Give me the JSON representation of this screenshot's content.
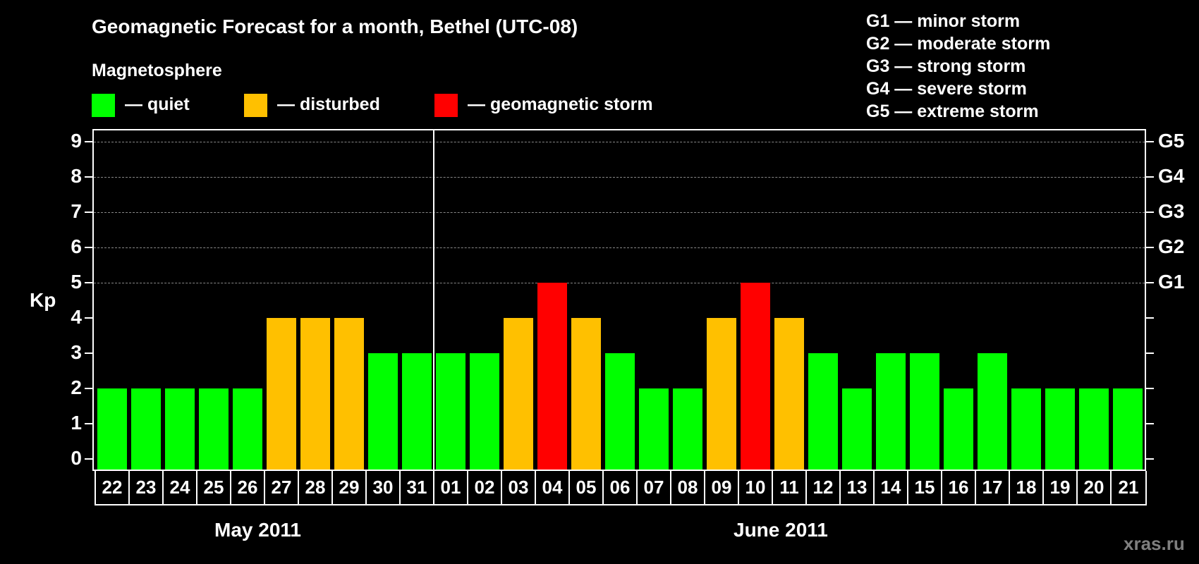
{
  "title": "Geomagnetic Forecast for a month, Bethel (UTC-08)",
  "subtitle": "Magnetosphere",
  "legend": [
    {
      "label": "— quiet",
      "color": "#00ff00"
    },
    {
      "label": "— disturbed",
      "color": "#ffc000"
    },
    {
      "label": "— geomagnetic storm",
      "color": "#ff0000"
    }
  ],
  "g_scale": [
    "G1 — minor storm",
    "G2 — moderate storm",
    "G3 — strong storm",
    "G4 — severe storm",
    "G5 — extreme storm"
  ],
  "watermark": "xras.ru",
  "chart_data": {
    "type": "bar",
    "title": "Geomagnetic Forecast for a month, Bethel (UTC-08)",
    "xlabel": "",
    "ylabel": "Kp",
    "ylim": [
      0,
      9
    ],
    "yticks": [
      "0",
      "1",
      "2",
      "3",
      "4",
      "5",
      "6",
      "7",
      "8",
      "9"
    ],
    "right_axis_labels": {
      "5": "G1",
      "6": "G2",
      "7": "G3",
      "8": "G4",
      "9": "G5"
    },
    "grid": "dashed horizontal at Kp 5-9",
    "months": [
      {
        "label": "May 2011",
        "days": [
          "22",
          "23",
          "24",
          "25",
          "26",
          "27",
          "28",
          "29",
          "30",
          "31"
        ]
      },
      {
        "label": "June 2011",
        "days": [
          "01",
          "02",
          "03",
          "04",
          "05",
          "06",
          "07",
          "08",
          "09",
          "10",
          "11",
          "12",
          "13",
          "14",
          "15",
          "16",
          "17",
          "18",
          "19",
          "20",
          "21"
        ]
      }
    ],
    "categories": [
      "22",
      "23",
      "24",
      "25",
      "26",
      "27",
      "28",
      "29",
      "30",
      "31",
      "01",
      "02",
      "03",
      "04",
      "05",
      "06",
      "07",
      "08",
      "09",
      "10",
      "11",
      "12",
      "13",
      "14",
      "15",
      "16",
      "17",
      "18",
      "19",
      "20",
      "21"
    ],
    "values": [
      2,
      2,
      2,
      2,
      2,
      4,
      4,
      4,
      3,
      3,
      3,
      3,
      4,
      5,
      4,
      3,
      2,
      2,
      4,
      5,
      4,
      3,
      2,
      3,
      3,
      2,
      3,
      2,
      2,
      2,
      2
    ],
    "status": [
      "quiet",
      "quiet",
      "quiet",
      "quiet",
      "quiet",
      "disturbed",
      "disturbed",
      "disturbed",
      "quiet",
      "quiet",
      "quiet",
      "quiet",
      "disturbed",
      "storm",
      "disturbed",
      "quiet",
      "quiet",
      "quiet",
      "disturbed",
      "storm",
      "disturbed",
      "quiet",
      "quiet",
      "quiet",
      "quiet",
      "quiet",
      "quiet",
      "quiet",
      "quiet",
      "quiet",
      "quiet"
    ],
    "colors": {
      "quiet": "#00ff00",
      "disturbed": "#ffc000",
      "storm": "#ff0000"
    }
  }
}
